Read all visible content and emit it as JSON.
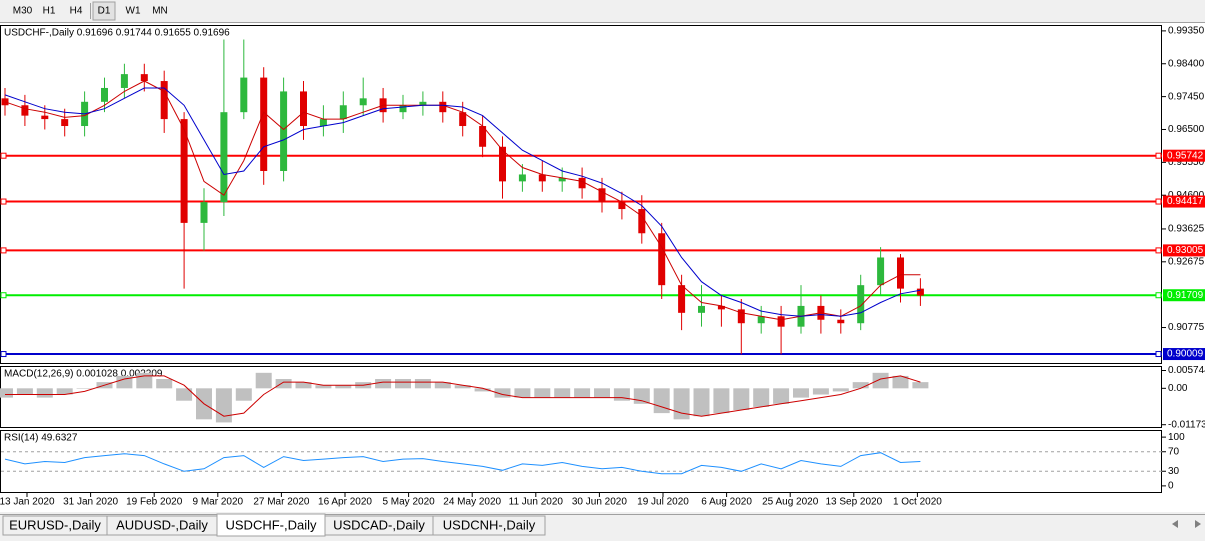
{
  "toolbar": {
    "buttons": [
      "M30",
      "H1",
      "H4",
      "D1",
      "W1",
      "MN"
    ],
    "active": 3
  },
  "chart_data": [
    {
      "type": "candlestick",
      "title": "USDCHF-,Daily  0.91696 0.91744 0.91655 0.91696",
      "up_color": "#2db83d",
      "down_color": "#e00000",
      "open": [
        0.974,
        0.972,
        0.969,
        0.968,
        0.966,
        0.973,
        0.977,
        0.981,
        0.979,
        0.968,
        0.938,
        0.944,
        0.97,
        0.98,
        0.953,
        0.976,
        0.966,
        0.968,
        0.972,
        0.974,
        0.97,
        0.972,
        0.973,
        0.97,
        0.966,
        0.96,
        0.95,
        0.952,
        0.95,
        0.951,
        0.948,
        0.944,
        0.942,
        0.935,
        0.92,
        0.912,
        0.914,
        0.913,
        0.909,
        0.911,
        0.908,
        0.914,
        0.91,
        0.909,
        0.92,
        0.928,
        0.919
      ],
      "high": [
        0.977,
        0.975,
        0.972,
        0.971,
        0.976,
        0.98,
        0.984,
        0.984,
        0.982,
        0.97,
        0.948,
        0.991,
        0.991,
        0.983,
        0.98,
        0.979,
        0.972,
        0.976,
        0.98,
        0.977,
        0.975,
        0.976,
        0.976,
        0.973,
        0.969,
        0.963,
        0.955,
        0.956,
        0.954,
        0.954,
        0.951,
        0.947,
        0.946,
        0.938,
        0.923,
        0.92,
        0.917,
        0.916,
        0.914,
        0.914,
        0.92,
        0.917,
        0.913,
        0.923,
        0.931,
        0.929,
        0.922
      ],
      "low": [
        0.969,
        0.966,
        0.965,
        0.963,
        0.963,
        0.97,
        0.974,
        0.976,
        0.964,
        0.919,
        0.93,
        0.94,
        0.968,
        0.949,
        0.95,
        0.962,
        0.963,
        0.964,
        0.969,
        0.967,
        0.968,
        0.969,
        0.967,
        0.963,
        0.957,
        0.945,
        0.947,
        0.947,
        0.947,
        0.945,
        0.941,
        0.939,
        0.932,
        0.916,
        0.907,
        0.908,
        0.908,
        0.9,
        0.906,
        0.9,
        0.906,
        0.906,
        0.906,
        0.907,
        0.917,
        0.915,
        0.914
      ],
      "close": [
        0.972,
        0.969,
        0.968,
        0.966,
        0.973,
        0.977,
        0.981,
        0.979,
        0.968,
        0.938,
        0.944,
        0.97,
        0.98,
        0.953,
        0.976,
        0.966,
        0.968,
        0.972,
        0.974,
        0.97,
        0.972,
        0.973,
        0.97,
        0.966,
        0.96,
        0.95,
        0.952,
        0.95,
        0.951,
        0.948,
        0.944,
        0.942,
        0.935,
        0.92,
        0.912,
        0.914,
        0.913,
        0.909,
        0.911,
        0.908,
        0.914,
        0.91,
        0.909,
        0.92,
        0.928,
        0.919,
        0.917
      ],
      "series": [
        {
          "color": "#cc0000",
          "values": [
            0.973,
            0.971,
            0.97,
            0.9685,
            0.969,
            0.972,
            0.976,
            0.979,
            0.976,
            0.965,
            0.95,
            0.946,
            0.956,
            0.97,
            0.965,
            0.97,
            0.968,
            0.968,
            0.97,
            0.972,
            0.972,
            0.972,
            0.972,
            0.97,
            0.966,
            0.959,
            0.954,
            0.952,
            0.951,
            0.95,
            0.947,
            0.944,
            0.94,
            0.931,
            0.92,
            0.915,
            0.914,
            0.912,
            0.911,
            0.91,
            0.911,
            0.912,
            0.911,
            0.914,
            0.92,
            0.923,
            0.923
          ]
        },
        {
          "color": "#0000cc",
          "values": [
            0.975,
            0.973,
            0.971,
            0.97,
            0.9695,
            0.971,
            0.974,
            0.977,
            0.977,
            0.972,
            0.962,
            0.952,
            0.953,
            0.96,
            0.962,
            0.965,
            0.966,
            0.967,
            0.969,
            0.971,
            0.9715,
            0.972,
            0.972,
            0.9715,
            0.969,
            0.964,
            0.959,
            0.956,
            0.953,
            0.9515,
            0.9495,
            0.9465,
            0.943,
            0.937,
            0.928,
            0.921,
            0.917,
            0.915,
            0.9125,
            0.9115,
            0.911,
            0.9115,
            0.911,
            0.912,
            0.915,
            0.9175,
            0.9185
          ]
        }
      ],
      "ylim": [
        0.8975,
        0.9952
      ],
      "yticks": [
        {
          "value": 0.9935,
          "label": "0.99350"
        },
        {
          "value": 0.984,
          "label": "0.98400"
        },
        {
          "value": 0.9745,
          "label": "0.97450"
        },
        {
          "value": 0.965,
          "label": "0.96500"
        },
        {
          "value": 0.9555,
          "label": "0.95550"
        },
        {
          "value": 0.946,
          "label": "0.94600"
        },
        {
          "value": 0.93625,
          "label": "0.93625"
        },
        {
          "value": 0.92675,
          "label": "0.92675"
        },
        {
          "value": 0.90775,
          "label": "0.90775"
        }
      ],
      "levels": [
        {
          "value": 0.95742,
          "label": "0.95742",
          "color": "#ff0000"
        },
        {
          "value": 0.94417,
          "label": "0.94417",
          "color": "#ff0000"
        },
        {
          "value": 0.93005,
          "label": "0.93005",
          "color": "#ff0000"
        },
        {
          "value": 0.91709,
          "label": "0.91709",
          "color": "#00ee00"
        },
        {
          "value": 0.90009,
          "label": "0.90009",
          "color": "#0000cc"
        }
      ]
    },
    {
      "type": "macd",
      "title": "MACD(12,26,9) 0.001028 0.002209",
      "histogram": {
        "color": "#c0c0c0",
        "values": [
          -0.003,
          -0.002,
          -0.003,
          -0.002,
          0.0,
          0.002,
          0.004,
          0.005,
          0.003,
          -0.004,
          -0.01,
          -0.011,
          -0.004,
          0.005,
          0.003,
          0.002,
          0.001,
          0.001,
          0.002,
          0.003,
          0.003,
          0.003,
          0.002,
          0.001,
          -0.001,
          -0.003,
          -0.003,
          -0.003,
          -0.003,
          -0.003,
          -0.003,
          -0.004,
          -0.005,
          -0.008,
          -0.01,
          -0.009,
          -0.008,
          -0.007,
          -0.006,
          -0.005,
          -0.003,
          -0.002,
          -0.001,
          0.002,
          0.005,
          0.004,
          0.002
        ]
      },
      "signal": {
        "color": "#cc0000",
        "values": [
          -0.002,
          -0.002,
          -0.002,
          -0.002,
          -0.001,
          0.001,
          0.003,
          0.004,
          0.004,
          0.001,
          -0.005,
          -0.009,
          -0.008,
          -0.002,
          0.002,
          0.002,
          0.001,
          0.001,
          0.001,
          0.002,
          0.002,
          0.002,
          0.002,
          0.001,
          0.0,
          -0.002,
          -0.003,
          -0.003,
          -0.003,
          -0.003,
          -0.003,
          -0.003,
          -0.004,
          -0.006,
          -0.008,
          -0.009,
          -0.008,
          -0.007,
          -0.006,
          -0.005,
          -0.004,
          -0.003,
          -0.002,
          0.0,
          0.003,
          0.004,
          0.002
        ]
      },
      "ylim": [
        -0.0128,
        0.0072
      ],
      "yticks": [
        {
          "value": 0.005744,
          "label": "0.005744"
        },
        {
          "value": 0,
          "label": "0.00"
        },
        {
          "value": -0.011738,
          "label": "-0.011738"
        }
      ]
    },
    {
      "type": "rsi",
      "title": "RSI(14) 49.6327",
      "series": [
        {
          "color": "#1e90ff",
          "values": [
            55,
            45,
            50,
            48,
            58,
            62,
            66,
            62,
            45,
            30,
            35,
            58,
            62,
            38,
            60,
            52,
            55,
            58,
            60,
            50,
            55,
            56,
            50,
            45,
            40,
            32,
            45,
            42,
            48,
            40,
            35,
            38,
            30,
            25,
            25,
            42,
            38,
            30,
            45,
            35,
            52,
            45,
            40,
            62,
            68,
            48,
            50
          ]
        }
      ],
      "ylim": [
        -14.6,
        114.6
      ],
      "yticks": [
        100,
        70,
        30,
        0
      ],
      "levels": [
        70,
        30
      ]
    }
  ],
  "date_labels": [
    "13 Jan 2020",
    "31 Jan 2020",
    "19 Feb 2020",
    "9 Mar 2020",
    "27 Mar 2020",
    "16 Apr 2020",
    "5 May 2020",
    "24 May 2020",
    "11 Jun 2020",
    "30 Jun 2020",
    "19 Jul 2020",
    "6 Aug 2020",
    "25 Aug 2020",
    "13 Sep 2020",
    "1 Oct 2020"
  ],
  "tabs": {
    "items": [
      "EURUSD-,Daily",
      "AUDUSD-,Daily",
      "USDCHF-,Daily",
      "USDCAD-,Daily",
      "USDCNH-,Daily"
    ],
    "active": 2
  }
}
